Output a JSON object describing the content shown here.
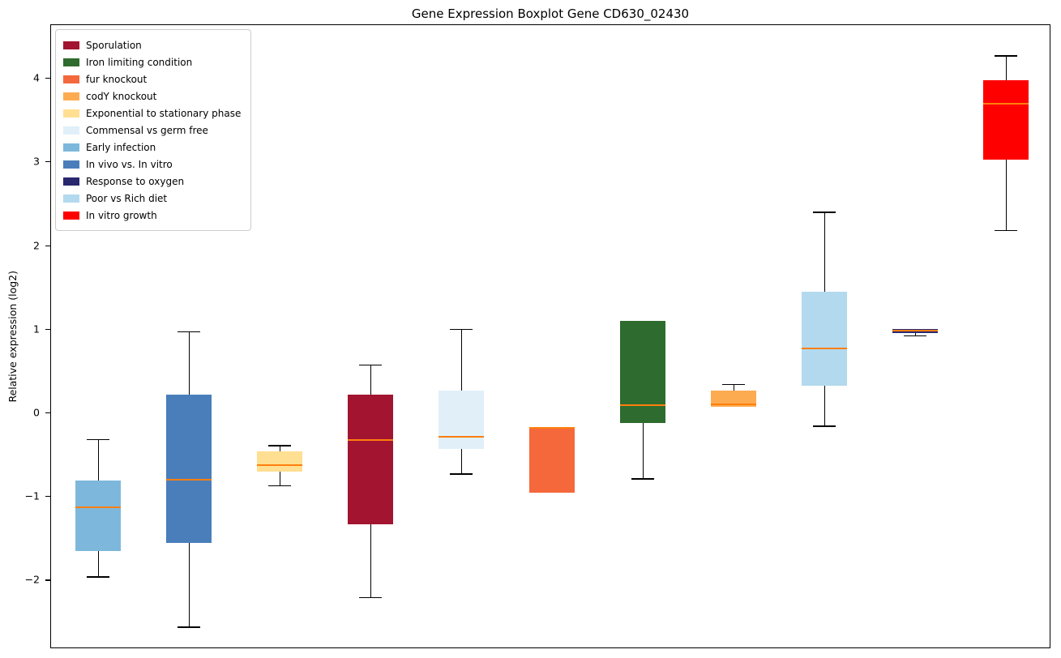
{
  "chart_data": {
    "type": "boxplot",
    "title": "Gene Expression Boxplot Gene CD630_02430",
    "ylabel": "Relative expression (log2)",
    "ylim": [
      -2.8,
      4.64
    ],
    "yticks": [
      -2,
      -1,
      0,
      1,
      2,
      3,
      4
    ],
    "ytick_labels": [
      "−2",
      "−1",
      "0",
      "1",
      "2",
      "3",
      "4"
    ],
    "grid": false,
    "median_color": "#ff7f0e",
    "axis_color": "#000000",
    "legend_position": "upper-left",
    "legend": [
      {
        "label": "Sporulation",
        "color": "#a2142f"
      },
      {
        "label": "Iron limiting condition",
        "color": "#2e6b2e"
      },
      {
        "label": "fur knockout",
        "color": "#f4683c"
      },
      {
        "label": "codY knockout",
        "color": "#fcab51"
      },
      {
        "label": "Exponential to stationary phase",
        "color": "#ffdf91"
      },
      {
        "label": "Commensal vs germ free",
        "color": "#e1f0f8"
      },
      {
        "label": "Early infection",
        "color": "#7db8dc"
      },
      {
        "label": "In vivo vs. In vitro",
        "color": "#4a7ebb"
      },
      {
        "label": "Response to oxygen",
        "color": "#28286e"
      },
      {
        "label": "Poor vs Rich diet",
        "color": "#b3d9ee"
      },
      {
        "label": "In vitro growth",
        "color": "#fe0000"
      }
    ],
    "series": [
      {
        "name": "Early infection",
        "color": "#7db8dc",
        "whisker_low": -1.95,
        "q1": -1.65,
        "median": -1.12,
        "q3": -0.8,
        "whisker_high": -0.31
      },
      {
        "name": "In vivo vs. In vitro",
        "color": "#4a7ebb",
        "whisker_low": -2.55,
        "q1": -1.55,
        "median": -0.79,
        "q3": 0.22,
        "whisker_high": 0.98
      },
      {
        "name": "Exponential to stationary phase",
        "color": "#ffdf91",
        "whisker_low": -0.86,
        "q1": -0.7,
        "median": -0.62,
        "q3": -0.46,
        "whisker_high": -0.38
      },
      {
        "name": "Sporulation",
        "color": "#a2142f",
        "whisker_low": -2.2,
        "q1": -1.33,
        "median": -0.32,
        "q3": 0.22,
        "whisker_high": 0.58
      },
      {
        "name": "Commensal vs germ free",
        "color": "#e1f0f8",
        "whisker_low": -0.72,
        "q1": -0.43,
        "median": -0.28,
        "q3": 0.27,
        "whisker_high": 1.01
      },
      {
        "name": "fur knockout",
        "color": "#f4683c",
        "whisker_low": -0.95,
        "q1": -0.95,
        "median": -0.17,
        "q3": -0.17,
        "whisker_high": -0.17
      },
      {
        "name": "Iron limiting condition",
        "color": "#2e6b2e",
        "whisker_low": -0.78,
        "q1": -0.12,
        "median": 0.1,
        "q3": 1.1,
        "whisker_high": 1.1
      },
      {
        "name": "codY knockout",
        "color": "#fcab51",
        "whisker_low": 0.08,
        "q1": 0.08,
        "median": 0.11,
        "q3": 0.27,
        "whisker_high": 0.35
      },
      {
        "name": "Poor vs Rich diet",
        "color": "#b3d9ee",
        "whisker_low": -0.15,
        "q1": 0.33,
        "median": 0.77,
        "q3": 1.45,
        "whisker_high": 2.41
      },
      {
        "name": "Response to oxygen",
        "color": "#28286e",
        "whisker_low": 0.93,
        "q1": 0.96,
        "median": 0.985,
        "q3": 1.005,
        "whisker_high": 1.005
      },
      {
        "name": "In vitro growth",
        "color": "#fe0000",
        "whisker_low": 2.19,
        "q1": 3.03,
        "median": 3.7,
        "q3": 3.98,
        "whisker_high": 4.28
      }
    ]
  }
}
